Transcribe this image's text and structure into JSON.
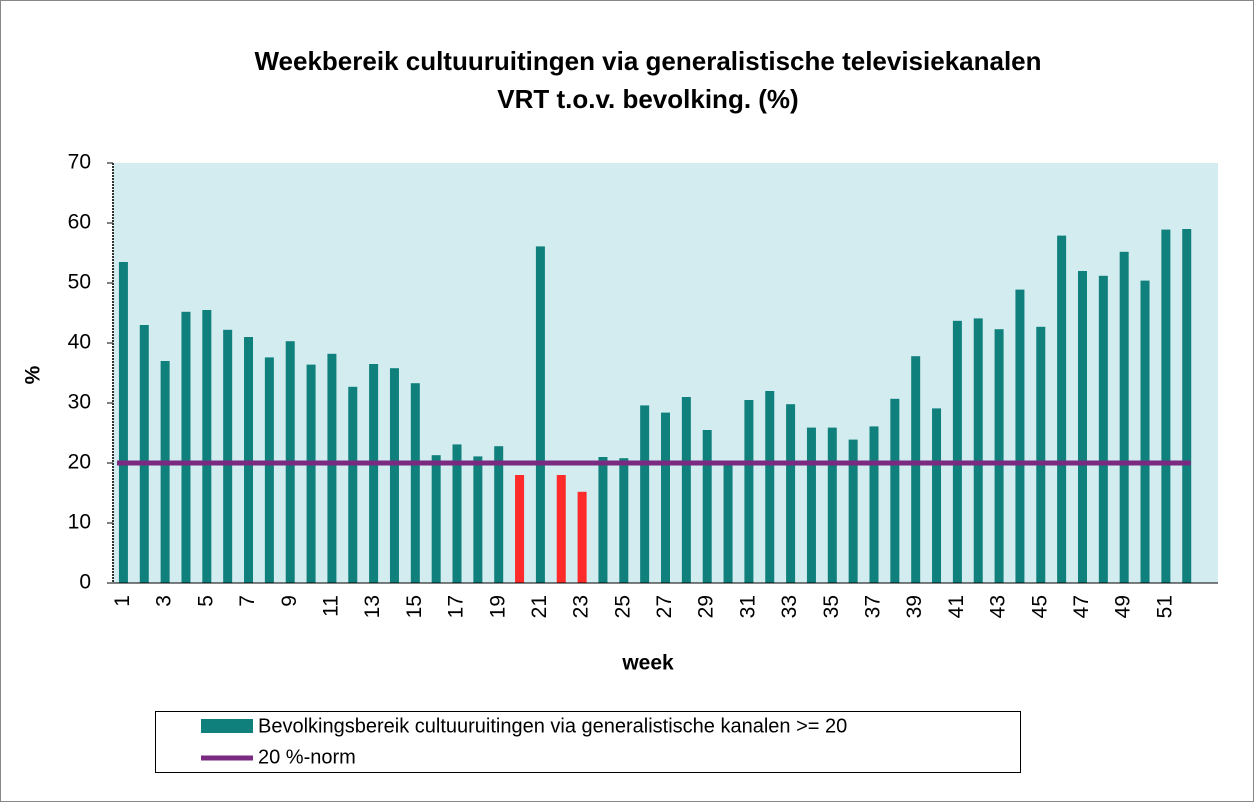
{
  "chart_data": {
    "type": "bar",
    "title": "Weekbereik cultuuruitingen via generalistische televisiekanalen",
    "subtitle": "VRT t.o.v. bevolking. (%)",
    "x_label": "week",
    "y_label": "%",
    "categories": [
      1,
      null,
      3,
      null,
      5,
      null,
      7,
      null,
      9,
      null,
      11,
      null,
      13,
      null,
      15,
      null,
      17,
      null,
      19,
      null,
      21,
      null,
      23,
      null,
      25,
      null,
      27,
      null,
      29,
      null,
      31,
      null,
      33,
      null,
      35,
      null,
      37,
      null,
      39,
      null,
      41,
      null,
      43,
      null,
      45,
      null,
      47,
      null,
      49,
      null,
      51,
      null,
      null
    ],
    "series": [
      {
        "name": "Bevolkingsbereik cultuuruitingen via generalistische kanalen >= 20",
        "color": "#0f807b",
        "values": [
          53.5,
          43,
          37,
          45.2,
          45.5,
          42.2,
          41,
          37.6,
          40.3,
          36.4,
          38.2,
          32.7,
          36.5,
          35.8,
          33.3,
          21.3,
          23.1,
          21.1,
          22.8,
          18,
          56.1,
          18,
          15.2,
          21,
          20.8,
          29.6,
          28.4,
          31,
          25.5,
          20,
          30.5,
          32,
          29.8,
          25.9,
          25.9,
          23.9,
          26.1,
          30.7,
          37.8,
          29.1,
          43.7,
          44.1,
          42.3,
          48.9,
          42.7,
          57.9,
          52,
          51.2,
          55.2,
          50.4,
          58.9,
          59,
          null
        ],
        "colors": [
          "#0f807b",
          "#0f807b",
          "#0f807b",
          "#0f807b",
          "#0f807b",
          "#0f807b",
          "#0f807b",
          "#0f807b",
          "#0f807b",
          "#0f807b",
          "#0f807b",
          "#0f807b",
          "#0f807b",
          "#0f807b",
          "#0f807b",
          "#0f807b",
          "#0f807b",
          "#0f807b",
          "#0f807b",
          "#ff2a2a",
          "#0f807b",
          "#ff2a2a",
          "#ff2a2a",
          "#0f807b",
          "#0f807b",
          "#0f807b",
          "#0f807b",
          "#0f807b",
          "#0f807b",
          "#0f807b",
          "#0f807b",
          "#0f807b",
          "#0f807b",
          "#0f807b",
          "#0f807b",
          "#0f807b",
          "#0f807b",
          "#0f807b",
          "#0f807b",
          "#0f807b",
          "#0f807b",
          "#0f807b",
          "#0f807b",
          "#0f807b",
          "#0f807b",
          "#0f807b",
          "#0f807b",
          "#0f807b",
          "#0f807b",
          "#0f807b",
          "#0f807b",
          "#0f807b",
          null
        ]
      }
    ],
    "reference_lines": [
      {
        "name": "20 %-norm",
        "color": "#7a2a80",
        "value": 20
      }
    ],
    "ylim": [
      0,
      70
    ],
    "yticks": [
      0,
      10,
      20,
      30,
      40,
      50,
      60,
      70
    ],
    "plot_background": "#d3ecf0",
    "legend": "bottom"
  }
}
